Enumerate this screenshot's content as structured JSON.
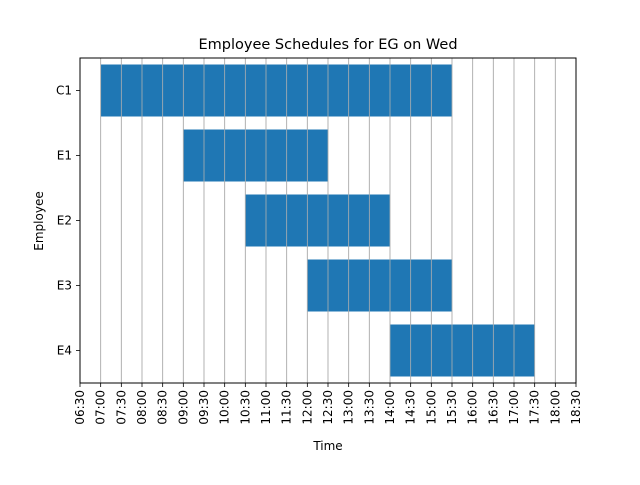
{
  "chart_data": {
    "type": "bar",
    "orientation": "horizontal",
    "title": "Employee Schedules for EG on Wed",
    "xlabel": "Time",
    "ylabel": "Employee",
    "x_ticks": [
      "06:30",
      "07:00",
      "07:30",
      "08:00",
      "08:30",
      "09:00",
      "09:30",
      "10:00",
      "10:30",
      "11:00",
      "11:30",
      "12:00",
      "12:30",
      "13:00",
      "13:30",
      "14:00",
      "14:30",
      "15:00",
      "15:30",
      "16:00",
      "16:30",
      "17:00",
      "17:30",
      "18:00",
      "18:30"
    ],
    "xlim": [
      "06:30",
      "18:30"
    ],
    "grid": "vertical",
    "bar_color": "#1f77b4",
    "bars": [
      {
        "label": "C1",
        "start": "07:00",
        "end": "15:30"
      },
      {
        "label": "E1",
        "start": "09:00",
        "end": "12:30"
      },
      {
        "label": "E2",
        "start": "10:30",
        "end": "14:00"
      },
      {
        "label": "E3",
        "start": "12:00",
        "end": "15:30"
      },
      {
        "label": "E4",
        "start": "14:00",
        "end": "17:30"
      }
    ]
  }
}
